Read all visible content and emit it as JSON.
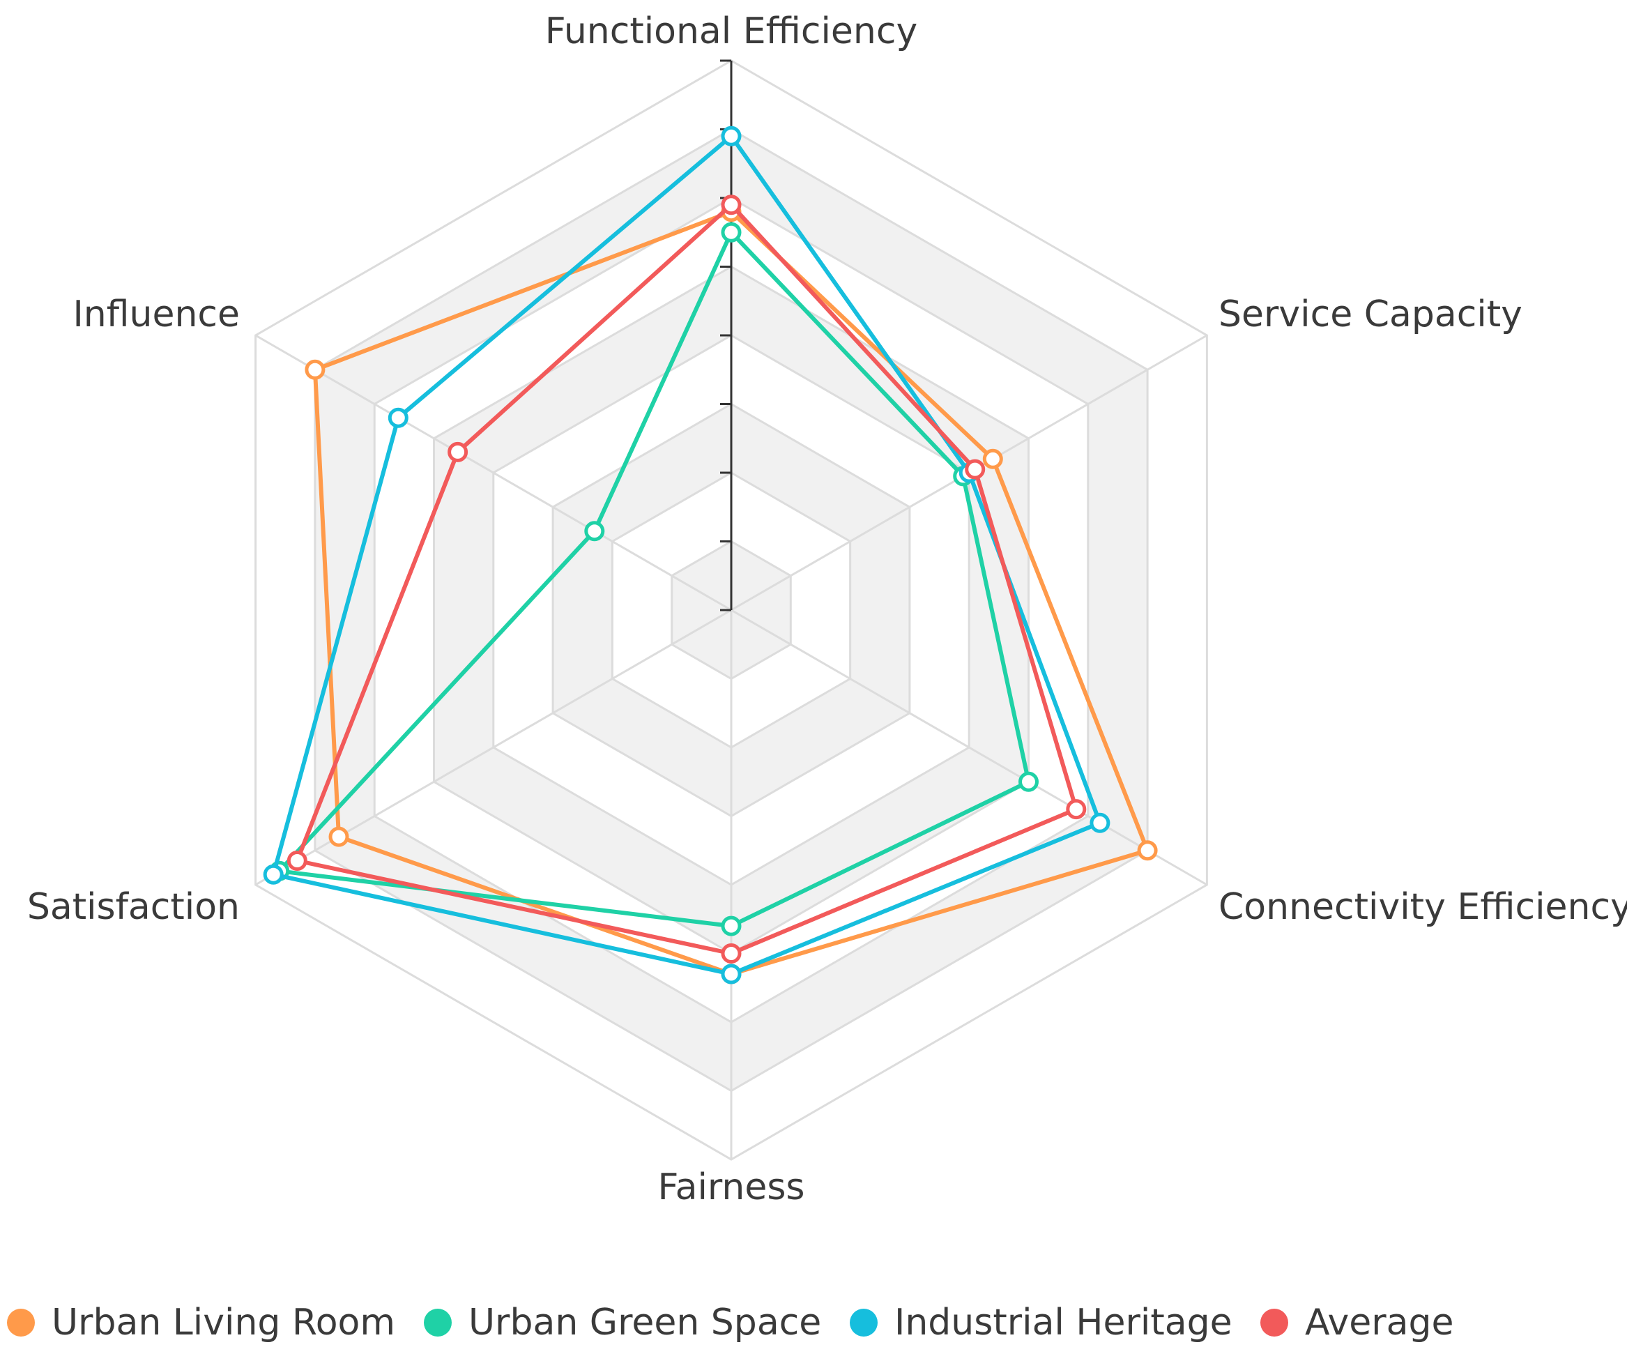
{
  "chart_data": {
    "type": "radar",
    "title": "",
    "axes": [
      "Functional Efficiency",
      "Service Capacity",
      "Connectivity Efficiency",
      "Fairness",
      "Satisfaction",
      "Influence"
    ],
    "range": [
      0,
      8
    ],
    "grid_levels": 8,
    "series": [
      {
        "name": "Urban Living Room",
        "color": "#FF9A4A",
        "values": [
          5.8,
          4.4,
          7.0,
          5.3,
          6.6,
          7.0
        ]
      },
      {
        "name": "Urban Green Space",
        "color": "#1FD1A6",
        "values": [
          5.5,
          3.9,
          5.0,
          4.6,
          7.6,
          2.3
        ]
      },
      {
        "name": "Industrial Heritage",
        "color": "#16BEDD",
        "values": [
          6.9,
          4.0,
          6.2,
          5.3,
          7.7,
          5.6
        ]
      },
      {
        "name": "Average",
        "color": "#F25A5A",
        "values": [
          5.9,
          4.1,
          5.8,
          5.0,
          7.3,
          4.6
        ]
      }
    ]
  }
}
